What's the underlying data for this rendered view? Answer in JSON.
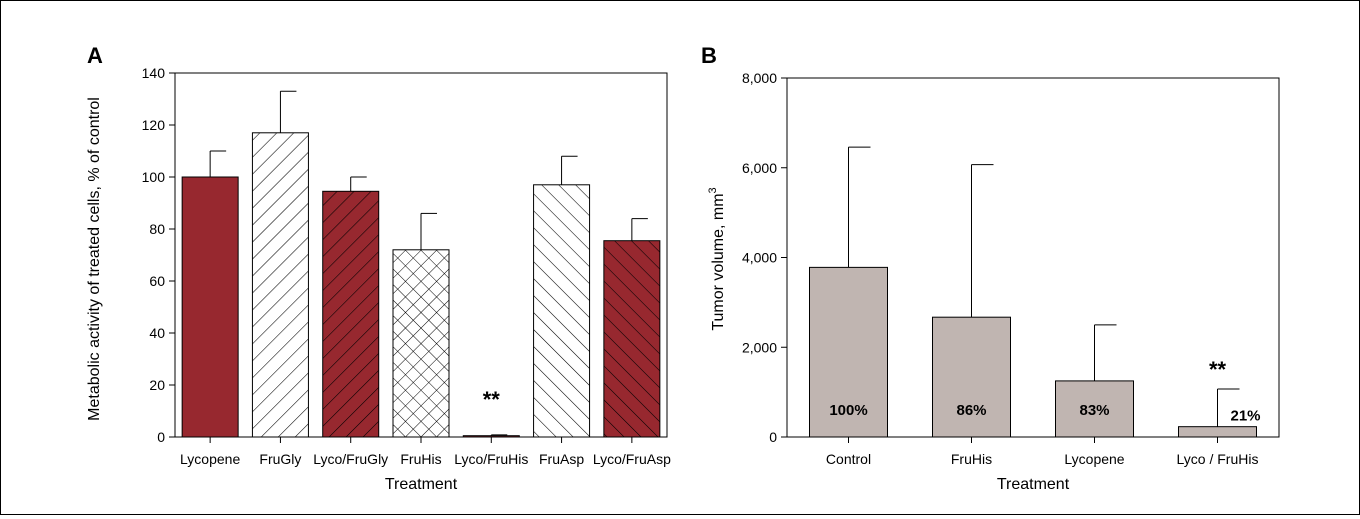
{
  "chart_data": [
    {
      "panel": "A",
      "type": "bar",
      "xlabel": "Treatment",
      "ylabel": "Metabolic activity of treated cells, % of control",
      "ylim": [
        0,
        140
      ],
      "yticks": [
        "0",
        "20",
        "40",
        "60",
        "80",
        "100",
        "120",
        "140"
      ],
      "categories": [
        "Lycopene",
        "FruGly",
        "Lyco/FruGly",
        "FruHis",
        "Lyco/FruHis",
        "FruAsp",
        "Lyco/FruAsp"
      ],
      "values": [
        100,
        117,
        94.5,
        72,
        0.5,
        97,
        75.5
      ],
      "errors": [
        10,
        16,
        5.5,
        14,
        0.3,
        11,
        8.5
      ],
      "fills": [
        "solid",
        "diag-forward",
        "solid-diag-forward",
        "crosshatch",
        "solid",
        "diag-back",
        "solid-diag-back"
      ],
      "colors": {
        "solid": "#97282f",
        "open": "#ffffff"
      },
      "annotation": {
        "text": "**",
        "category_index": 4
      },
      "grid": false
    },
    {
      "panel": "B",
      "type": "bar",
      "xlabel": "Treatment",
      "ylabel": "Tumor volume, mm",
      "ylabel_superscript": "3",
      "ylim": [
        0,
        8000
      ],
      "yticks": [
        "0",
        "2,000",
        "4,000",
        "6,000",
        "8,000"
      ],
      "categories": [
        "Control",
        "FruHis",
        "Lycopene",
        "Lyco / FruHis"
      ],
      "values": [
        3780,
        2670,
        1250,
        230
      ],
      "errors": [
        2680,
        3400,
        1250,
        840
      ],
      "bar_labels": [
        "100%",
        "86%",
        "83%",
        "21%"
      ],
      "colors": {
        "bar": "#c0b5b1"
      },
      "annotation": {
        "text": "**",
        "category_index": 3
      },
      "grid": false
    }
  ]
}
